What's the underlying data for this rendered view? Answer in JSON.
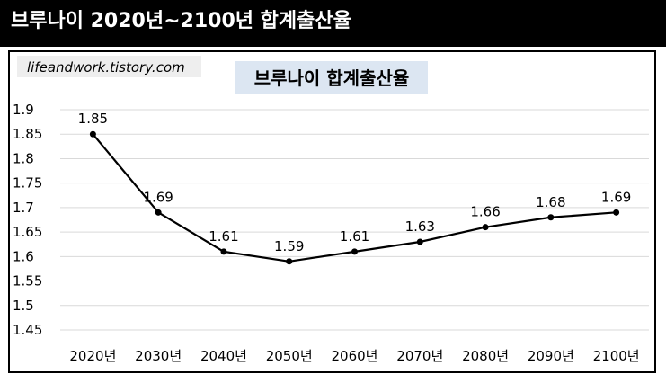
{
  "header": {
    "title": "브루나이 2020년~2100년 합계출산율"
  },
  "watermark": "lifeandwork.tistory.com",
  "colors": {
    "header_bg": "#000000",
    "title_box": "#dce6f2",
    "line": "#000000",
    "grid": "#d9d9d9"
  },
  "chart_data": {
    "type": "line",
    "title": "브루나이 합계출산율",
    "categories": [
      "2020년",
      "2030년",
      "2040년",
      "2050년",
      "2060년",
      "2070년",
      "2080년",
      "2090년",
      "2100년"
    ],
    "series": [
      {
        "values": [
          1.85,
          1.69,
          1.61,
          1.59,
          1.61,
          1.63,
          1.66,
          1.68,
          1.69
        ]
      }
    ],
    "data_labels": [
      "1.85",
      "1.69",
      "1.61",
      "1.59",
      "1.61",
      "1.63",
      "1.66",
      "1.68",
      "1.69"
    ],
    "ylim": [
      1.45,
      1.9
    ],
    "yticks": [
      "1.9",
      "1.85",
      "1.8",
      "1.75",
      "1.7",
      "1.65",
      "1.6",
      "1.55",
      "1.5",
      "1.45"
    ],
    "grid": true,
    "legend": "none"
  }
}
